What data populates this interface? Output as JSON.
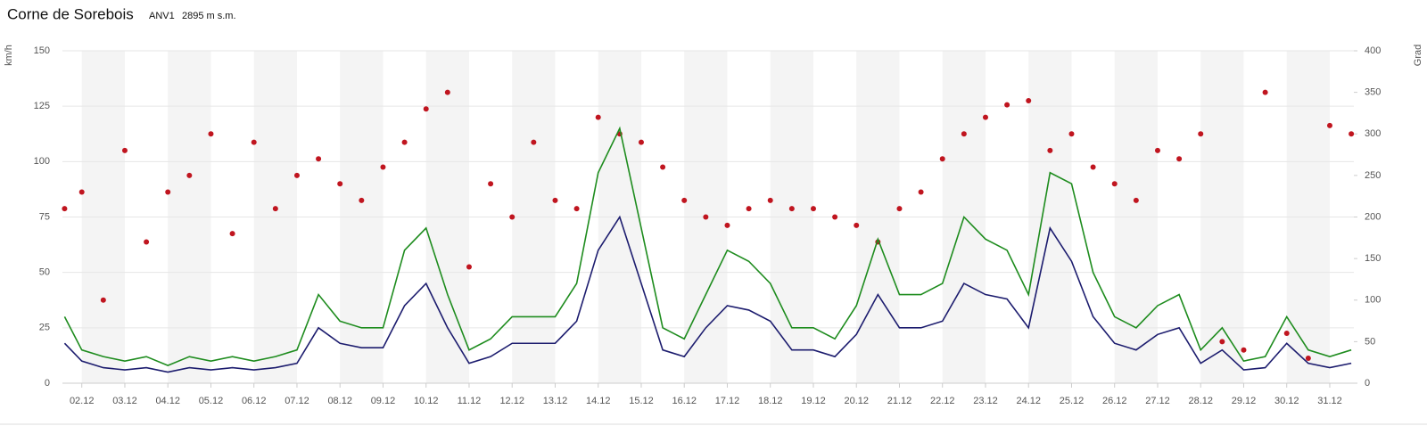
{
  "chart_data": {
    "type": "line",
    "title": "Corne de Sorebois",
    "station_code": "ANV1",
    "altitude": "2895 m s.m.",
    "y_label": "km/h",
    "y2_label": "Grad",
    "x": [
      1.6,
      2.0,
      2.5,
      3.0,
      3.5,
      4.0,
      4.5,
      5.0,
      5.5,
      6.0,
      6.5,
      7.0,
      7.5,
      8.0,
      8.5,
      9.0,
      9.5,
      10.0,
      10.5,
      11.0,
      11.5,
      12.0,
      12.5,
      13.0,
      13.5,
      14.0,
      14.5,
      15.0,
      15.5,
      16.0,
      16.5,
      17.0,
      17.5,
      18.0,
      18.5,
      19.0,
      19.5,
      20.0,
      20.5,
      21.0,
      21.5,
      22.0,
      22.5,
      23.0,
      23.5,
      24.0,
      24.5,
      25.0,
      25.5,
      26.0,
      26.5,
      27.0,
      27.5,
      28.0,
      28.5,
      29.0,
      29.5,
      30.0,
      30.5,
      31.0,
      31.5
    ],
    "xlim": [
      1.55,
      31.56
    ],
    "xticks": [
      {
        "value": 2,
        "label": "02.12"
      },
      {
        "value": 3,
        "label": "03.12"
      },
      {
        "value": 4,
        "label": "04.12"
      },
      {
        "value": 5,
        "label": "05.12"
      },
      {
        "value": 6,
        "label": "06.12"
      },
      {
        "value": 7,
        "label": "07.12"
      },
      {
        "value": 8,
        "label": "08.12"
      },
      {
        "value": 9,
        "label": "09.12"
      },
      {
        "value": 10,
        "label": "10.12"
      },
      {
        "value": 11,
        "label": "11.12"
      },
      {
        "value": 12,
        "label": "12.12"
      },
      {
        "value": 13,
        "label": "13.12"
      },
      {
        "value": 14,
        "label": "14.12"
      },
      {
        "value": 15,
        "label": "15.12"
      },
      {
        "value": 16,
        "label": "16.12"
      },
      {
        "value": 17,
        "label": "17.12"
      },
      {
        "value": 18,
        "label": "18.12"
      },
      {
        "value": 19,
        "label": "19.12"
      },
      {
        "value": 20,
        "label": "20.12"
      },
      {
        "value": 21,
        "label": "21.12"
      },
      {
        "value": 22,
        "label": "22.12"
      },
      {
        "value": 23,
        "label": "23.12"
      },
      {
        "value": 24,
        "label": "24.12"
      },
      {
        "value": 25,
        "label": "25.12"
      },
      {
        "value": 26,
        "label": "26.12"
      },
      {
        "value": 27,
        "label": "27.12"
      },
      {
        "value": 28,
        "label": "28.12"
      },
      {
        "value": 29,
        "label": "29.12"
      },
      {
        "value": 30,
        "label": "30.12"
      },
      {
        "value": 31,
        "label": "31.12"
      }
    ],
    "ylim": [
      0,
      150
    ],
    "yticks": [
      0,
      25,
      50,
      75,
      100,
      125,
      150
    ],
    "y2lim": [
      0,
      400
    ],
    "y2ticks": [
      0,
      50,
      100,
      150,
      200,
      250,
      300,
      350,
      400
    ],
    "grid": true,
    "series": [
      {
        "color": "#1e8c1e",
        "values": [
          30,
          15,
          12,
          10,
          12,
          8,
          12,
          10,
          12,
          10,
          12,
          15,
          40,
          28,
          25,
          25,
          60,
          70,
          40,
          15,
          20,
          30,
          30,
          30,
          45,
          95,
          115,
          70,
          25,
          20,
          40,
          60,
          55,
          45,
          25,
          25,
          20,
          35,
          65,
          40,
          40,
          45,
          75,
          65,
          60,
          40,
          95,
          90,
          50,
          30,
          25,
          35,
          40,
          15,
          25,
          10,
          12,
          30,
          15,
          12,
          15
        ]
      },
      {
        "color": "#1c1c6e",
        "values": [
          18,
          10,
          7,
          6,
          7,
          5,
          7,
          6,
          7,
          6,
          7,
          9,
          25,
          18,
          16,
          16,
          35,
          45,
          25,
          9,
          12,
          18,
          18,
          18,
          28,
          60,
          75,
          45,
          15,
          12,
          25,
          35,
          33,
          28,
          15,
          15,
          12,
          22,
          40,
          25,
          25,
          28,
          45,
          40,
          38,
          25,
          70,
          55,
          30,
          18,
          15,
          22,
          25,
          9,
          15,
          6,
          7,
          18,
          9,
          7,
          9
        ]
      },
      {
        "color": "#c0151f",
        "type": "scatter",
        "axis": "y2",
        "values": [
          210,
          230,
          100,
          280,
          170,
          230,
          250,
          300,
          180,
          290,
          210,
          250,
          270,
          240,
          220,
          260,
          290,
          330,
          350,
          140,
          240,
          200,
          290,
          220,
          210,
          320,
          300,
          290,
          260,
          220,
          200,
          190,
          210,
          220,
          210,
          210,
          200,
          190,
          170,
          210,
          230,
          270,
          300,
          320,
          335,
          340,
          280,
          300,
          260,
          240,
          220,
          280,
          270,
          300,
          50,
          40,
          350,
          60,
          30,
          310,
          300
        ]
      }
    ]
  }
}
